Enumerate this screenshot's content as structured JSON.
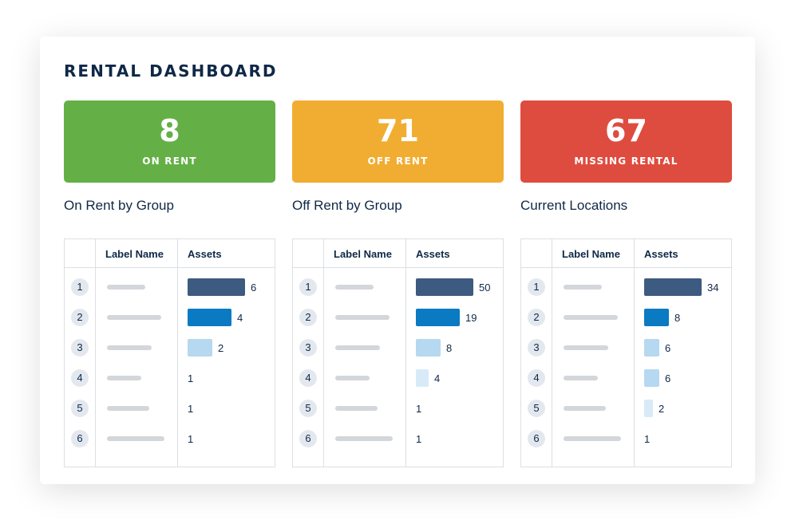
{
  "title": "RENTAL DASHBOARD",
  "colors": {
    "bar_levels": [
      "#3d5a80",
      "#0a7ac2",
      "#b6d8f0",
      "#d8eaf7"
    ]
  },
  "columns": [
    {
      "stat": "8",
      "stat_label": "ON RENT",
      "color": "#64b046",
      "section_title": "On Rent by Group",
      "headers": [
        "Label Name",
        "Assets"
      ],
      "rows": [
        {
          "index": "1",
          "value": "6",
          "bar_fill": 1.0,
          "level": 0
        },
        {
          "index": "2",
          "value": "4",
          "bar_fill": 0.76,
          "level": 1
        },
        {
          "index": "3",
          "value": "2",
          "bar_fill": 0.43,
          "level": 2
        },
        {
          "index": "4",
          "value": "1",
          "bar_fill": 0,
          "level": 3
        },
        {
          "index": "5",
          "value": "1",
          "bar_fill": 0,
          "level": 3
        },
        {
          "index": "6",
          "value": "1",
          "bar_fill": 0,
          "level": 3
        }
      ]
    },
    {
      "stat": "71",
      "stat_label": "OFF RENT",
      "color": "#f1ad32",
      "section_title": "Off Rent by Group",
      "headers": [
        "Label Name",
        "Assets"
      ],
      "rows": [
        {
          "index": "1",
          "value": "50",
          "bar_fill": 1.0,
          "level": 0
        },
        {
          "index": "2",
          "value": "19",
          "bar_fill": 0.76,
          "level": 1
        },
        {
          "index": "3",
          "value": "8",
          "bar_fill": 0.43,
          "level": 2
        },
        {
          "index": "4",
          "value": "4",
          "bar_fill": 0.22,
          "level": 3
        },
        {
          "index": "5",
          "value": "1",
          "bar_fill": 0,
          "level": 3
        },
        {
          "index": "6",
          "value": "1",
          "bar_fill": 0,
          "level": 3
        }
      ]
    },
    {
      "stat": "67",
      "stat_label": "MISSING RENTAL",
      "color": "#de4c3f",
      "section_title": "Current Locations",
      "headers": [
        "Label Name",
        "Assets"
      ],
      "rows": [
        {
          "index": "1",
          "value": "34",
          "bar_fill": 1.0,
          "level": 0
        },
        {
          "index": "2",
          "value": "8",
          "bar_fill": 0.43,
          "level": 1
        },
        {
          "index": "3",
          "value": "6",
          "bar_fill": 0.26,
          "level": 2
        },
        {
          "index": "4",
          "value": "6",
          "bar_fill": 0.26,
          "level": 2
        },
        {
          "index": "5",
          "value": "2",
          "bar_fill": 0.15,
          "level": 3
        },
        {
          "index": "6",
          "value": "1",
          "bar_fill": 0,
          "level": 3
        }
      ]
    }
  ]
}
